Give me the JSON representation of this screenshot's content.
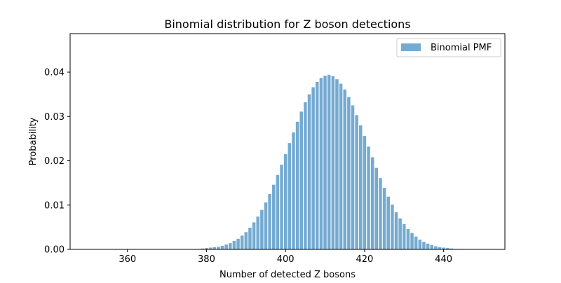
{
  "chart_data": {
    "type": "bar",
    "title": "Binomial distribution for Z boson detections",
    "xlabel": "Number of detected Z bosons",
    "ylabel": "Probability",
    "xlim": [
      345.5,
      455.5
    ],
    "ylim": [
      0,
      0.0487
    ],
    "xticks": [
      360,
      380,
      400,
      420,
      440
    ],
    "xtick_labels": [
      "360",
      "380",
      "400",
      "420",
      "440"
    ],
    "yticks": [
      0,
      0.01,
      0.02,
      0.03,
      0.04
    ],
    "ytick_labels": [
      "0.00",
      "0.01",
      "0.02",
      "0.03",
      "0.04"
    ],
    "grid": false,
    "legend_position": "top-right",
    "bar_color": "#75aad1",
    "series": [
      {
        "name": "Binomial PMF",
        "x": [
          378,
          379,
          380,
          381,
          382,
          383,
          384,
          385,
          386,
          387,
          388,
          389,
          390,
          391,
          392,
          393,
          394,
          395,
          396,
          397,
          398,
          399,
          400,
          401,
          402,
          403,
          404,
          405,
          406,
          407,
          408,
          409,
          410,
          411,
          412,
          413,
          414,
          415,
          416,
          417,
          418,
          419,
          420,
          421,
          422,
          423,
          424,
          425,
          426,
          427,
          428,
          429,
          430,
          431,
          432,
          433,
          434,
          435,
          436,
          437,
          438,
          439,
          440,
          441,
          442,
          443
        ],
        "values": [
          0.0001,
          0.0002,
          0.0003,
          0.0004,
          0.0005,
          0.0006,
          0.0008,
          0.0011,
          0.0014,
          0.0019,
          0.0024,
          0.0031,
          0.0039,
          0.0049,
          0.0061,
          0.0074,
          0.0089,
          0.0106,
          0.0125,
          0.0146,
          0.0168,
          0.0191,
          0.0215,
          0.024,
          0.0264,
          0.0288,
          0.0311,
          0.0332,
          0.035,
          0.0366,
          0.0378,
          0.0387,
          0.0392,
          0.0394,
          0.0391,
          0.0384,
          0.0374,
          0.0361,
          0.0344,
          0.0325,
          0.0303,
          0.028,
          0.0256,
          0.0232,
          0.0208,
          0.0184,
          0.0161,
          0.0139,
          0.0119,
          0.0101,
          0.0084,
          0.007,
          0.0057,
          0.0046,
          0.0037,
          0.0029,
          0.0022,
          0.0017,
          0.0013,
          0.001,
          0.0007,
          0.0005,
          0.0004,
          0.0003,
          0.0002,
          0.0001
        ]
      }
    ]
  }
}
